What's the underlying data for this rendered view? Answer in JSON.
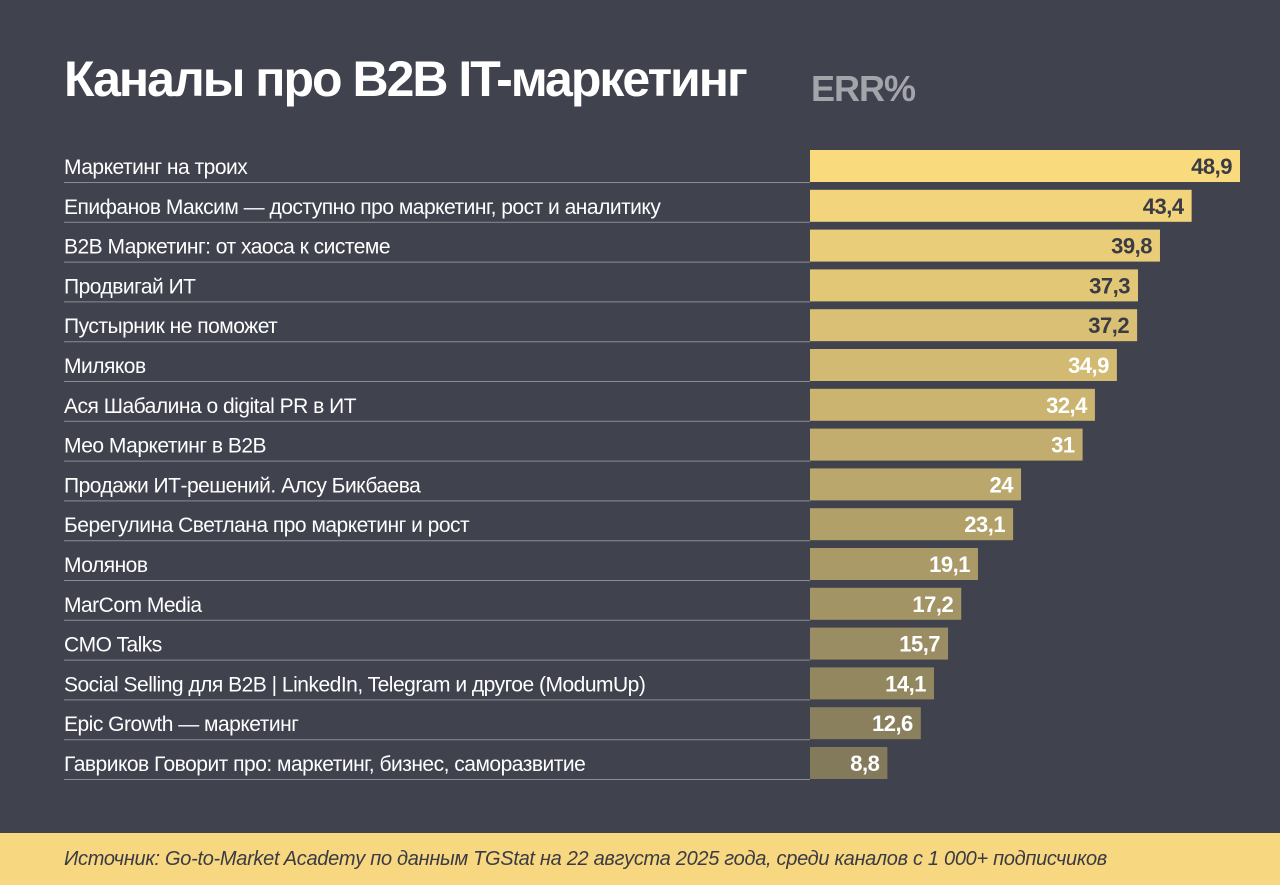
{
  "header": {
    "title": "Каналы про B2B IT-маркетинг",
    "unit": "ERR%"
  },
  "chart_data": {
    "type": "bar",
    "orientation": "horizontal",
    "title": "Каналы про B2B IT-маркетинг",
    "value_label": "ERR%",
    "categories": [
      "Маркетинг на троих",
      "Епифанов Максим — доступно про маркетинг, рост и аналитику",
      "B2B Маркетинг: от хаоса к системе",
      "Продвигай ИТ",
      "Пустырник не поможет",
      "Миляков",
      "Ася Шабалина о digital PR в ИТ",
      "Мео Маркетинг в B2B",
      "Продажи ИТ-решений. Алсу Бикбаева",
      "Берегулина Светлана про маркетинг и рост",
      "Молянов",
      "MarCom Media",
      "CMO Talks",
      "Social Selling для B2B | LinkedIn, Telegram и другое (ModumUp)",
      "Epic Growth — маркетинг",
      "Гавриков Говорит про: маркетинг, бизнес, саморазвитие"
    ],
    "values": [
      48.9,
      43.4,
      39.8,
      37.3,
      37.2,
      34.9,
      32.4,
      31,
      24,
      23.1,
      19.1,
      17.2,
      15.7,
      14.1,
      12.6,
      8.8
    ],
    "value_labels": [
      "48,9",
      "43,4",
      "39,8",
      "37,3",
      "37,2",
      "34,9",
      "32,4",
      "31",
      "24",
      "23,1",
      "19,1",
      "17,2",
      "15,7",
      "14,1",
      "12,6",
      "8,8"
    ],
    "xlim": [
      0,
      48.9
    ],
    "grid": false,
    "legend": "none",
    "colors": {
      "bar_max": "#f9da7d",
      "bar_min": "#837a5c",
      "label_dark": "#3a3b44",
      "label_light": "#ffffff",
      "category_text": "#ffffff",
      "separator": "#8a8c96"
    }
  },
  "footer": {
    "source": "Источник: Go-to-Market Academy по данным TGStat на 22 августа 2025 года, среди каналов с 1 000+ подписчиков"
  }
}
